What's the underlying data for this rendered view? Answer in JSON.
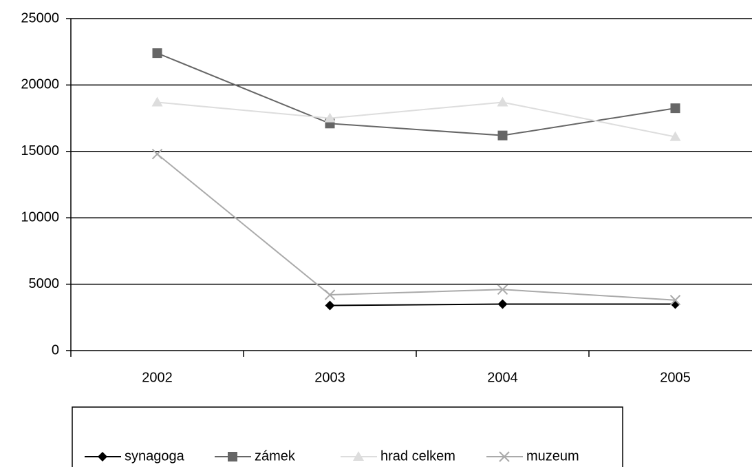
{
  "chart_data": {
    "type": "line",
    "categories": [
      "2002",
      "2003",
      "2004",
      "2005"
    ],
    "series": [
      {
        "name": "synagoga",
        "color": "#000000",
        "marker": "diamond",
        "values": [
          null,
          3400,
          3500,
          3500
        ]
      },
      {
        "name": "zámek",
        "color": "#666666",
        "marker": "square",
        "values": [
          22400,
          17100,
          16200,
          18250
        ]
      },
      {
        "name": "hrad celkem",
        "color": "#dddddd",
        "marker": "triangle",
        "values": [
          18700,
          17500,
          18700,
          16100
        ]
      },
      {
        "name": "muzeum",
        "color": "#aaaaaa",
        "marker": "x",
        "values": [
          14800,
          4200,
          4600,
          3800
        ]
      }
    ],
    "ylim": [
      0,
      25000
    ],
    "yticks": [
      0,
      5000,
      10000,
      15000,
      20000,
      25000
    ],
    "grid": true,
    "legend": "bottom"
  }
}
